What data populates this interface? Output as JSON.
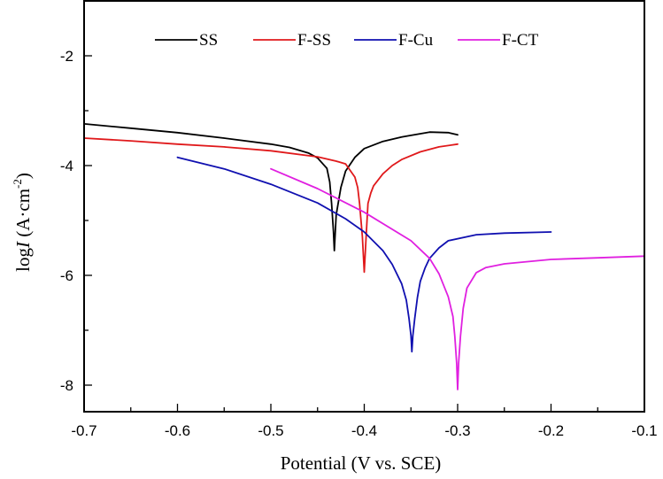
{
  "chart_data": {
    "type": "line",
    "title": "",
    "xlabel": "Potential (V vs. SCE)",
    "ylabel": {
      "prefix": "log",
      "italic": "I",
      "units_open": " (A·cm",
      "units_sup": "-2",
      "units_close": ")"
    },
    "xlim": [
      -0.7,
      -0.1
    ],
    "ylim": [
      -8.5,
      -1
    ],
    "xticks": [
      -0.7,
      -0.6,
      -0.5,
      -0.4,
      -0.3,
      -0.2,
      -0.1
    ],
    "xtick_labels": [
      "-0.7",
      "-0.6",
      "-0.5",
      "-0.4",
      "-0.3",
      "-0.2",
      "-0.1"
    ],
    "xminor_ticks": [
      -0.65,
      -0.55,
      -0.45,
      -0.35,
      -0.25,
      -0.15
    ],
    "yticks": [
      -2,
      -4,
      -6,
      -8
    ],
    "ytick_labels": [
      "-2",
      "-4",
      "-6",
      "-8"
    ],
    "yminor_ticks": [
      -3,
      -5,
      -7
    ],
    "grid": false,
    "legend_position": "top-center",
    "series": [
      {
        "name": "SS",
        "color": "#000000",
        "x": [
          -0.7,
          -0.65,
          -0.6,
          -0.55,
          -0.5,
          -0.48,
          -0.46,
          -0.45,
          -0.44,
          -0.437,
          -0.435,
          -0.433,
          -0.432,
          -0.431,
          -0.43,
          -0.428,
          -0.425,
          -0.42,
          -0.41,
          -0.4,
          -0.38,
          -0.36,
          -0.35,
          -0.33,
          -0.31,
          -0.3
        ],
        "y": [
          -3.24,
          -3.32,
          -3.4,
          -3.5,
          -3.61,
          -3.67,
          -3.77,
          -3.86,
          -4.05,
          -4.3,
          -4.69,
          -5.2,
          -5.55,
          -5.2,
          -4.9,
          -4.69,
          -4.4,
          -4.1,
          -3.85,
          -3.69,
          -3.56,
          -3.48,
          -3.45,
          -3.39,
          -3.4,
          -3.44
        ]
      },
      {
        "name": "F-SS",
        "color": "#e0191b",
        "x": [
          -0.7,
          -0.65,
          -0.6,
          -0.55,
          -0.5,
          -0.45,
          -0.43,
          -0.42,
          -0.41,
          -0.407,
          -0.405,
          -0.402,
          -0.4,
          -0.398,
          -0.396,
          -0.393,
          -0.39,
          -0.38,
          -0.37,
          -0.36,
          -0.34,
          -0.32,
          -0.3
        ],
        "y": [
          -3.5,
          -3.55,
          -3.61,
          -3.66,
          -3.73,
          -3.84,
          -3.92,
          -3.97,
          -4.21,
          -4.4,
          -4.69,
          -5.3,
          -5.94,
          -5.3,
          -4.69,
          -4.5,
          -4.37,
          -4.15,
          -4.0,
          -3.89,
          -3.75,
          -3.66,
          -3.61
        ]
      },
      {
        "name": "F-Cu",
        "color": "#1010b0",
        "x": [
          -0.6,
          -0.55,
          -0.5,
          -0.45,
          -0.42,
          -0.4,
          -0.38,
          -0.37,
          -0.36,
          -0.355,
          -0.352,
          -0.35,
          -0.349,
          -0.348,
          -0.346,
          -0.343,
          -0.34,
          -0.335,
          -0.33,
          -0.32,
          -0.31,
          -0.28,
          -0.25,
          -0.2
        ],
        "y": [
          -3.85,
          -4.06,
          -4.34,
          -4.68,
          -4.97,
          -5.21,
          -5.55,
          -5.8,
          -6.15,
          -6.45,
          -6.79,
          -7.1,
          -7.39,
          -7.1,
          -6.79,
          -6.4,
          -6.11,
          -5.87,
          -5.69,
          -5.5,
          -5.37,
          -5.26,
          -5.23,
          -5.21
        ]
      },
      {
        "name": "F-CT",
        "color": "#e020e0",
        "x": [
          -0.5,
          -0.45,
          -0.4,
          -0.35,
          -0.33,
          -0.32,
          -0.31,
          -0.305,
          -0.303,
          -0.301,
          -0.3,
          -0.299,
          -0.297,
          -0.294,
          -0.29,
          -0.28,
          -0.27,
          -0.25,
          -0.2,
          -0.15,
          -0.1
        ],
        "y": [
          -4.06,
          -4.42,
          -4.85,
          -5.37,
          -5.69,
          -5.97,
          -6.39,
          -6.75,
          -7.11,
          -7.6,
          -8.08,
          -7.6,
          -7.11,
          -6.6,
          -6.23,
          -5.95,
          -5.86,
          -5.79,
          -5.71,
          -5.68,
          -5.65
        ]
      }
    ]
  }
}
